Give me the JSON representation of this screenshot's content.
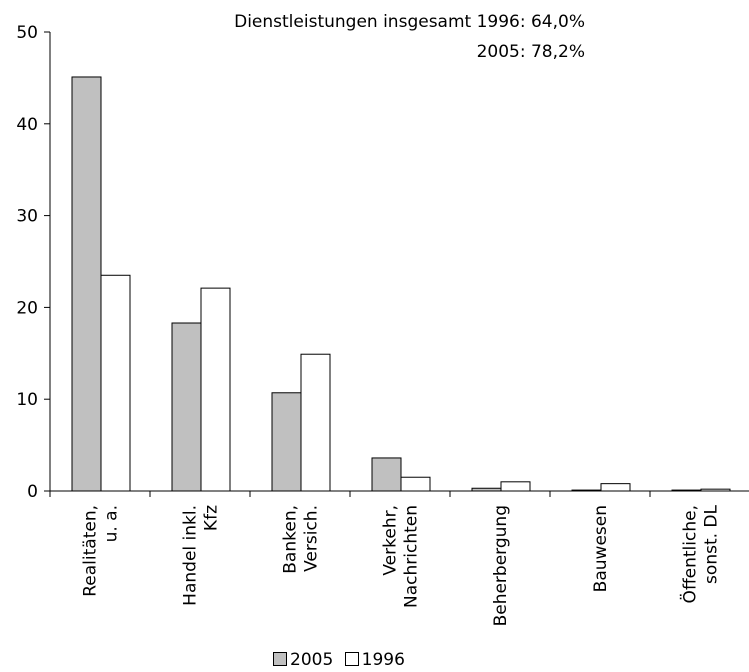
{
  "annotations": {
    "line1": "Dienstleistungen insgesamt 1996: 64,0%",
    "line2": "2005: 78,2%"
  },
  "colors": {
    "series_2005": "#c0c0c0",
    "series_1996": "#ffffff",
    "stroke": "#000000"
  },
  "chart_data": {
    "type": "bar",
    "title": "",
    "xlabel": "",
    "ylabel": "",
    "ylim": [
      0,
      50
    ],
    "yticks": [
      0,
      10,
      20,
      30,
      40,
      50
    ],
    "categories": [
      [
        "Realitäten,",
        "u. a."
      ],
      [
        "Handel inkl.",
        "Kfz"
      ],
      [
        "Banken,",
        "Versich."
      ],
      [
        "Verkehr,",
        "Nachrichten"
      ],
      [
        "Beherbergung"
      ],
      [
        "Bauwesen"
      ],
      [
        "Öffentliche,",
        "sonst. DL"
      ]
    ],
    "series": [
      {
        "name": "2005",
        "color": "#c0c0c0",
        "values": [
          45.1,
          18.3,
          10.7,
          3.6,
          0.3,
          0.1,
          0.1
        ]
      },
      {
        "name": "1996",
        "color": "#ffffff",
        "values": [
          23.5,
          22.1,
          14.9,
          1.5,
          1.0,
          0.8,
          0.2
        ]
      }
    ],
    "legend_position": "bottom-center"
  }
}
